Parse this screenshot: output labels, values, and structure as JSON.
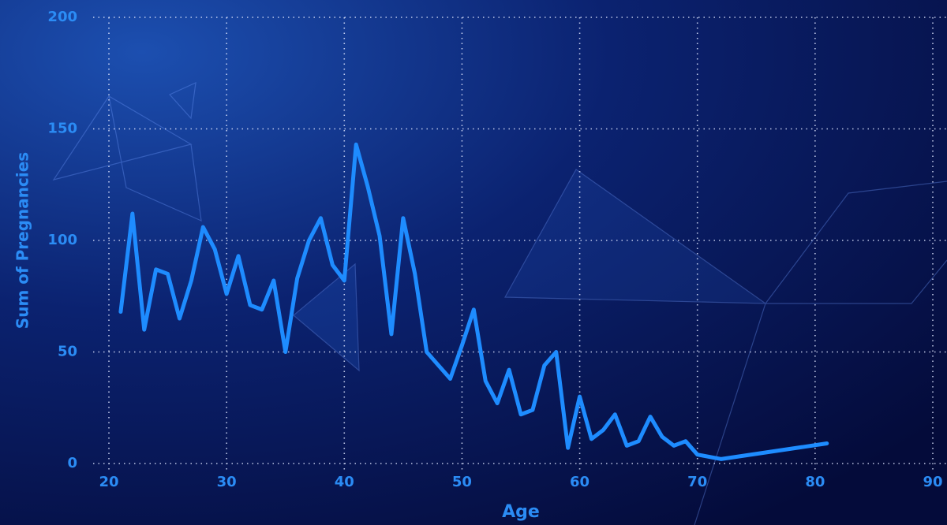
{
  "chart_data": {
    "type": "line",
    "x_label": "Age",
    "y_label": "Sum of Pregnancies",
    "x": [
      21,
      22,
      23,
      24,
      25,
      26,
      27,
      28,
      29,
      30,
      31,
      32,
      33,
      34,
      35,
      36,
      37,
      38,
      39,
      40,
      41,
      42,
      43,
      44,
      45,
      46,
      47,
      48,
      49,
      50,
      51,
      52,
      53,
      54,
      55,
      56,
      57,
      58,
      59,
      60,
      61,
      62,
      63,
      64,
      65,
      66,
      67,
      68,
      69,
      70,
      72,
      81
    ],
    "series": [
      {
        "name": "Sum of Pregnancies",
        "color": "#1e8cff",
        "values": [
          68,
          112,
          60,
          87,
          85,
          65,
          82,
          106,
          96,
          76,
          93,
          71,
          69,
          82,
          50,
          83,
          100,
          110,
          89,
          82,
          143,
          124,
          102,
          58,
          110,
          85,
          50,
          44,
          38,
          53,
          69,
          37,
          27,
          42,
          22,
          24,
          44,
          50,
          7,
          30,
          11,
          15,
          22,
          8,
          10,
          21,
          12,
          8,
          10,
          4,
          2,
          9
        ]
      }
    ],
    "xlim": [
      20,
      90
    ],
    "xticks": [
      20,
      30,
      40,
      50,
      60,
      70,
      80,
      90
    ],
    "ylim": [
      0,
      200
    ],
    "yticks": [
      0,
      50,
      100,
      150,
      200
    ],
    "grid": true
  }
}
